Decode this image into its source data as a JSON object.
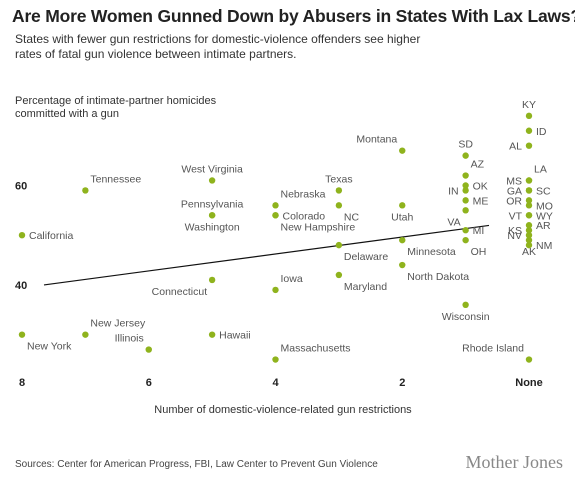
{
  "title": "Are More Women Gunned Down by Abusers in States With Lax Laws?",
  "subtitle": "States with fewer gun restrictions for domestic-violence offenders see higher rates of fatal gun violence between intimate partners.",
  "footer": {
    "sources": "Sources: Center for American Progress, FBI, Law Center to Prevent Gun Violence",
    "brand": "Mother Jones"
  },
  "colors": {
    "dot": "#8fb31d",
    "trend": "#111111",
    "text": "#222222"
  },
  "chart_data": {
    "type": "scatter",
    "ylabel_lines": [
      "Percentage of intimate-partner homicides",
      "committed with a gun"
    ],
    "xlabel": "Number of domestic-violence-related gun restrictions",
    "x_axis": "reversed",
    "xlim": [
      8,
      0
    ],
    "ylim": [
      24.5,
      80
    ],
    "x_ticks": [
      {
        "value": 8,
        "label": "8"
      },
      {
        "value": 6,
        "label": "6"
      },
      {
        "value": 4,
        "label": "4"
      },
      {
        "value": 2,
        "label": "2"
      },
      {
        "value": 0,
        "label": "None"
      }
    ],
    "y_ticks": [
      {
        "value": 40,
        "label": "40"
      },
      {
        "value": 60,
        "label": "60"
      }
    ],
    "trendline": {
      "x": [
        8,
        0
      ],
      "y": [
        40,
        53
      ]
    },
    "points": [
      {
        "label": "California",
        "x": 8,
        "y": 50,
        "anchor": "right"
      },
      {
        "label": "New York",
        "x": 8,
        "y": 30,
        "anchor": "below-right"
      },
      {
        "label": "Tennessee",
        "x": 7,
        "y": 59,
        "anchor": "above-right"
      },
      {
        "label": "New Jersey",
        "x": 7,
        "y": 30,
        "anchor": "above-right"
      },
      {
        "label": "Illinois",
        "x": 6,
        "y": 27,
        "anchor": "above-left"
      },
      {
        "label": "West Virginia",
        "x": 5,
        "y": 61,
        "anchor": "above"
      },
      {
        "label": "Pennsylvania",
        "x": 5,
        "y": 54,
        "anchor": "above"
      },
      {
        "label": "Washington",
        "x": 5,
        "y": 54,
        "anchor": "below"
      },
      {
        "label": "Connecticut",
        "x": 5,
        "y": 41,
        "anchor": "below-left"
      },
      {
        "label": "Hawaii",
        "x": 5,
        "y": 30,
        "anchor": "right"
      },
      {
        "label": "Nebraska",
        "x": 4,
        "y": 56,
        "anchor": "above-right"
      },
      {
        "label": "Colorado",
        "x": 4,
        "y": 54,
        "anchor": "right"
      },
      {
        "label": "New Hampshire",
        "x": 4,
        "y": 54,
        "anchor": "below-right"
      },
      {
        "label": "Iowa",
        "x": 4,
        "y": 39,
        "anchor": "above-right"
      },
      {
        "label": "Massachusetts",
        "x": 4,
        "y": 25,
        "anchor": "above-right"
      },
      {
        "label": "Montana",
        "x": 2,
        "y": 67,
        "anchor": "above-left"
      },
      {
        "label": "Texas",
        "x": 3,
        "y": 59,
        "anchor": "above"
      },
      {
        "label": "NC",
        "x": 3,
        "y": 56,
        "anchor": "below-right"
      },
      {
        "label": "Delaware",
        "x": 3,
        "y": 48,
        "anchor": "below-right"
      },
      {
        "label": "Maryland",
        "x": 3,
        "y": 42,
        "anchor": "below-right"
      },
      {
        "label": "Utah",
        "x": 2,
        "y": 56,
        "anchor": "below"
      },
      {
        "label": "Minnesota",
        "x": 2,
        "y": 49,
        "anchor": "below-right"
      },
      {
        "label": "North Dakota",
        "x": 2,
        "y": 44,
        "anchor": "below-right"
      },
      {
        "label": "SD",
        "x": 1,
        "y": 66,
        "anchor": "above"
      },
      {
        "label": "AZ",
        "x": 1,
        "y": 62,
        "anchor": "above-right"
      },
      {
        "label": "OK",
        "x": 1,
        "y": 60,
        "anchor": "right"
      },
      {
        "label": "IN",
        "x": 1,
        "y": 59,
        "anchor": "left"
      },
      {
        "label": "ME",
        "x": 1,
        "y": 57,
        "anchor": "right"
      },
      {
        "label": "VA",
        "x": 1,
        "y": 55,
        "anchor": "below-left"
      },
      {
        "label": "MI",
        "x": 1,
        "y": 51,
        "anchor": "right"
      },
      {
        "label": "OH",
        "x": 1,
        "y": 49,
        "anchor": "below-right"
      },
      {
        "label": "Wisconsin",
        "x": 1,
        "y": 36,
        "anchor": "below"
      },
      {
        "label": "Rhode Island",
        "x": 0,
        "y": 25,
        "anchor": "above-left"
      },
      {
        "label": "KY",
        "x": 0,
        "y": 74,
        "anchor": "above"
      },
      {
        "label": "ID",
        "x": 0,
        "y": 71,
        "anchor": "right"
      },
      {
        "label": "AL",
        "x": 0,
        "y": 68,
        "anchor": "left"
      },
      {
        "label": "MS",
        "x": 0,
        "y": 61,
        "anchor": "left"
      },
      {
        "label": "LA",
        "x": 0,
        "y": 61,
        "anchor": "above-right"
      },
      {
        "label": "GA",
        "x": 0,
        "y": 59,
        "anchor": "left"
      },
      {
        "label": "SC",
        "x": 0,
        "y": 59,
        "anchor": "right"
      },
      {
        "label": "OR",
        "x": 0,
        "y": 57,
        "anchor": "left"
      },
      {
        "label": "MO",
        "x": 0,
        "y": 56,
        "anchor": "right"
      },
      {
        "label": "VT",
        "x": 0,
        "y": 54,
        "anchor": "left"
      },
      {
        "label": "WY",
        "x": 0,
        "y": 54,
        "anchor": "right"
      },
      {
        "label": "KS",
        "x": 0,
        "y": 51,
        "anchor": "left"
      },
      {
        "label": "AR",
        "x": 0,
        "y": 52,
        "anchor": "right"
      },
      {
        "label": "NV",
        "x": 0,
        "y": 50,
        "anchor": "left"
      },
      {
        "label": "AK",
        "x": 0,
        "y": 49,
        "anchor": "below"
      },
      {
        "label": "NM",
        "x": 0,
        "y": 48,
        "anchor": "right"
      }
    ]
  }
}
